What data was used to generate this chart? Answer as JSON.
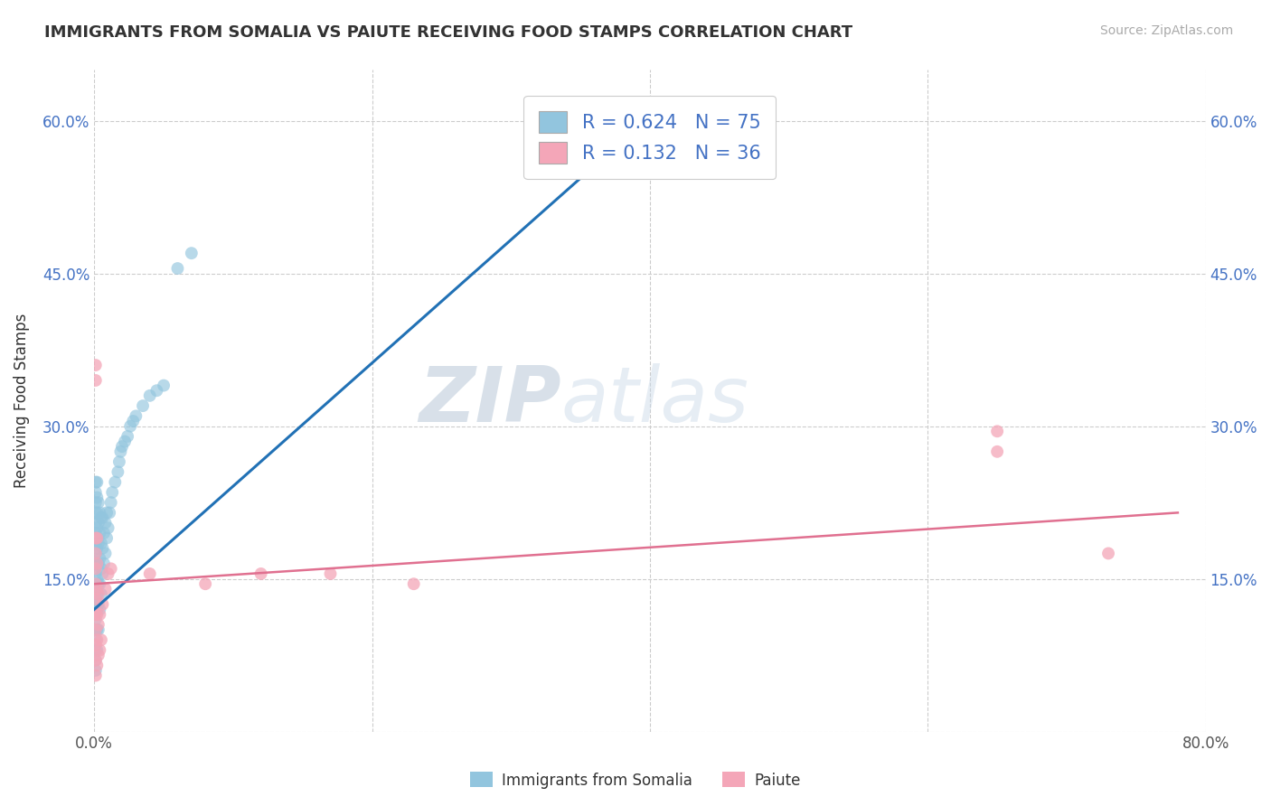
{
  "title": "IMMIGRANTS FROM SOMALIA VS PAIUTE RECEIVING FOOD STAMPS CORRELATION CHART",
  "source": "Source: ZipAtlas.com",
  "ylabel": "Receiving Food Stamps",
  "xlim": [
    0.0,
    0.8
  ],
  "ylim": [
    0.0,
    0.65
  ],
  "xticks": [
    0.0,
    0.2,
    0.4,
    0.6,
    0.8
  ],
  "xtick_labels": [
    "0.0%",
    "",
    "",
    "",
    "80.0%"
  ],
  "yticks": [
    0.0,
    0.15,
    0.3,
    0.45,
    0.6
  ],
  "ytick_labels_left": [
    "",
    "15.0%",
    "30.0%",
    "45.0%",
    "60.0%"
  ],
  "ytick_labels_right": [
    "",
    "15.0%",
    "30.0%",
    "45.0%",
    "60.0%"
  ],
  "grid_color": "#cccccc",
  "background_color": "#ffffff",
  "somalia_color": "#92c5de",
  "paiute_color": "#f4a6b8",
  "somalia_line_color": "#2171b5",
  "paiute_line_color": "#e07090",
  "somalia_R": 0.624,
  "somalia_N": 75,
  "paiute_R": 0.132,
  "paiute_N": 36,
  "watermark_ZIP": "ZIP",
  "watermark_atlas": "atlas",
  "legend_labels": [
    "Immigrants from Somalia",
    "Paiute"
  ],
  "somalia_scatter": [
    [
      0.001,
      0.06
    ],
    [
      0.001,
      0.07
    ],
    [
      0.001,
      0.08
    ],
    [
      0.001,
      0.09
    ],
    [
      0.001,
      0.1
    ],
    [
      0.001,
      0.11
    ],
    [
      0.001,
      0.12
    ],
    [
      0.001,
      0.13
    ],
    [
      0.001,
      0.14
    ],
    [
      0.001,
      0.155
    ],
    [
      0.001,
      0.165
    ],
    [
      0.001,
      0.175
    ],
    [
      0.001,
      0.185
    ],
    [
      0.001,
      0.195
    ],
    [
      0.001,
      0.205
    ],
    [
      0.001,
      0.215
    ],
    [
      0.001,
      0.225
    ],
    [
      0.001,
      0.235
    ],
    [
      0.001,
      0.245
    ],
    [
      0.002,
      0.08
    ],
    [
      0.002,
      0.1
    ],
    [
      0.002,
      0.12
    ],
    [
      0.002,
      0.135
    ],
    [
      0.002,
      0.15
    ],
    [
      0.002,
      0.165
    ],
    [
      0.002,
      0.18
    ],
    [
      0.002,
      0.2
    ],
    [
      0.002,
      0.215
    ],
    [
      0.002,
      0.23
    ],
    [
      0.002,
      0.245
    ],
    [
      0.003,
      0.1
    ],
    [
      0.003,
      0.125
    ],
    [
      0.003,
      0.145
    ],
    [
      0.003,
      0.165
    ],
    [
      0.003,
      0.185
    ],
    [
      0.003,
      0.205
    ],
    [
      0.003,
      0.225
    ],
    [
      0.004,
      0.12
    ],
    [
      0.004,
      0.145
    ],
    [
      0.004,
      0.17
    ],
    [
      0.004,
      0.195
    ],
    [
      0.004,
      0.215
    ],
    [
      0.005,
      0.135
    ],
    [
      0.005,
      0.16
    ],
    [
      0.005,
      0.185
    ],
    [
      0.005,
      0.21
    ],
    [
      0.006,
      0.155
    ],
    [
      0.006,
      0.18
    ],
    [
      0.006,
      0.21
    ],
    [
      0.007,
      0.165
    ],
    [
      0.007,
      0.195
    ],
    [
      0.008,
      0.175
    ],
    [
      0.008,
      0.205
    ],
    [
      0.009,
      0.19
    ],
    [
      0.009,
      0.215
    ],
    [
      0.01,
      0.2
    ],
    [
      0.011,
      0.215
    ],
    [
      0.012,
      0.225
    ],
    [
      0.013,
      0.235
    ],
    [
      0.015,
      0.245
    ],
    [
      0.017,
      0.255
    ],
    [
      0.018,
      0.265
    ],
    [
      0.019,
      0.275
    ],
    [
      0.02,
      0.28
    ],
    [
      0.022,
      0.285
    ],
    [
      0.024,
      0.29
    ],
    [
      0.026,
      0.3
    ],
    [
      0.028,
      0.305
    ],
    [
      0.03,
      0.31
    ],
    [
      0.035,
      0.32
    ],
    [
      0.04,
      0.33
    ],
    [
      0.045,
      0.335
    ],
    [
      0.05,
      0.34
    ],
    [
      0.06,
      0.455
    ],
    [
      0.07,
      0.47
    ]
  ],
  "paiute_scatter": [
    [
      0.001,
      0.055
    ],
    [
      0.001,
      0.07
    ],
    [
      0.001,
      0.085
    ],
    [
      0.001,
      0.1
    ],
    [
      0.001,
      0.115
    ],
    [
      0.001,
      0.13
    ],
    [
      0.001,
      0.145
    ],
    [
      0.001,
      0.16
    ],
    [
      0.001,
      0.175
    ],
    [
      0.001,
      0.19
    ],
    [
      0.001,
      0.345
    ],
    [
      0.001,
      0.36
    ],
    [
      0.002,
      0.065
    ],
    [
      0.002,
      0.09
    ],
    [
      0.002,
      0.115
    ],
    [
      0.002,
      0.14
    ],
    [
      0.002,
      0.165
    ],
    [
      0.002,
      0.19
    ],
    [
      0.003,
      0.075
    ],
    [
      0.003,
      0.105
    ],
    [
      0.003,
      0.135
    ],
    [
      0.004,
      0.08
    ],
    [
      0.004,
      0.115
    ],
    [
      0.005,
      0.09
    ],
    [
      0.006,
      0.125
    ],
    [
      0.008,
      0.14
    ],
    [
      0.01,
      0.155
    ],
    [
      0.012,
      0.16
    ],
    [
      0.04,
      0.155
    ],
    [
      0.08,
      0.145
    ],
    [
      0.12,
      0.155
    ],
    [
      0.17,
      0.155
    ],
    [
      0.23,
      0.145
    ],
    [
      0.65,
      0.295
    ],
    [
      0.65,
      0.275
    ],
    [
      0.73,
      0.175
    ]
  ],
  "somalia_regline": [
    [
      0.0,
      0.12
    ],
    [
      0.38,
      0.58
    ]
  ],
  "paiute_regline": [
    [
      0.0,
      0.145
    ],
    [
      0.78,
      0.215
    ]
  ]
}
